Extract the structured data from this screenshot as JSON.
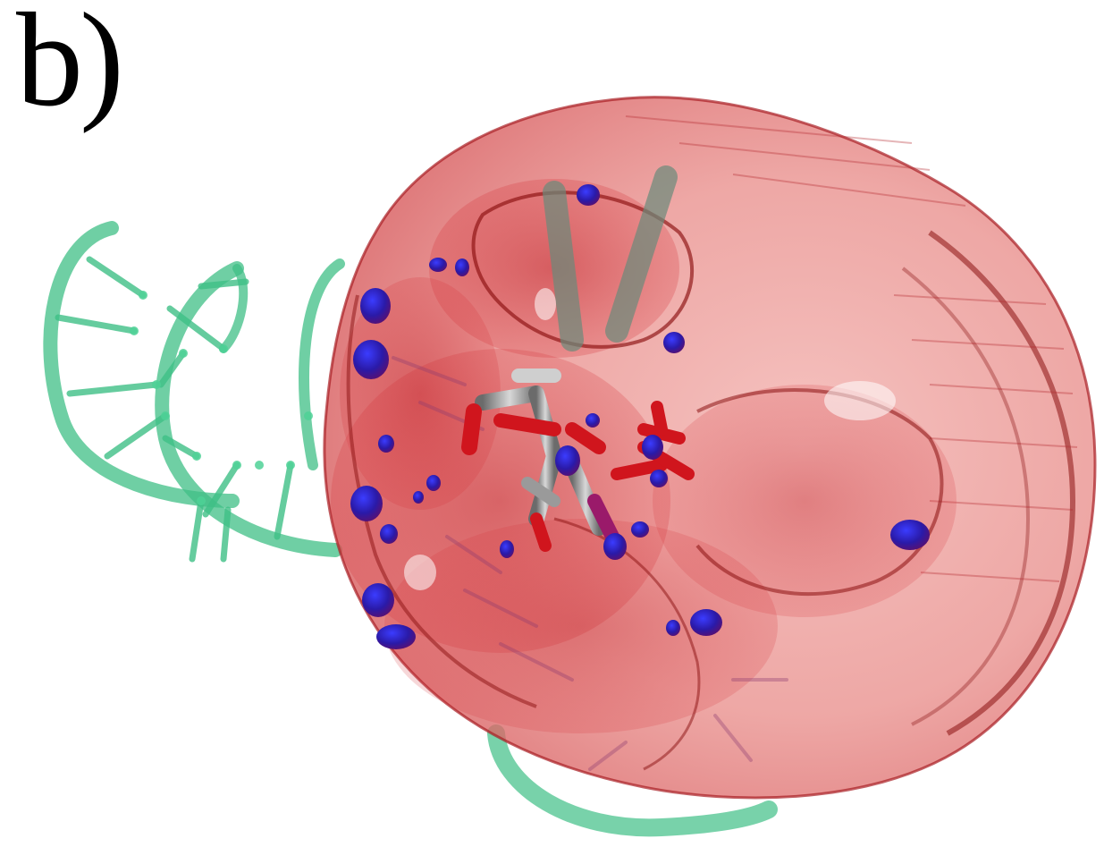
{
  "figure": {
    "panel_label": "b)"
  },
  "colors": {
    "density_red": "#d9393f",
    "density_dark": "#8a1010",
    "blue_blobs": "#2a1aa8",
    "rna_green": "#3fbf86",
    "ligand_grey": "#9a9a9a"
  }
}
